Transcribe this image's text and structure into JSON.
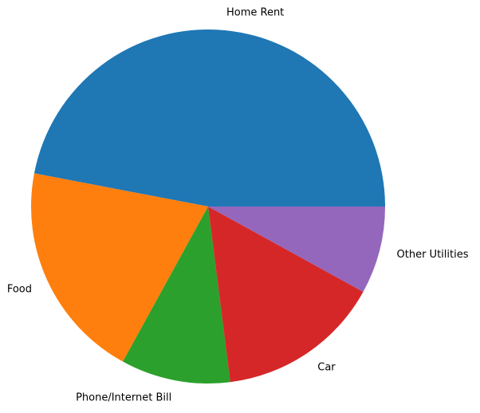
{
  "chart_data": {
    "type": "pie",
    "title": "",
    "start_angle_deg": 0,
    "direction": "counterclockwise",
    "slices": [
      {
        "label": "Home Rent",
        "value": 47,
        "color": "#1f77b4"
      },
      {
        "label": "Food",
        "value": 20,
        "color": "#ff7f0e"
      },
      {
        "label": "Phone/Internet Bill",
        "value": 10,
        "color": "#2ca02c"
      },
      {
        "label": "Car",
        "value": 15,
        "color": "#d62728"
      },
      {
        "label": "Other Utilities",
        "value": 8,
        "color": "#9467bd"
      }
    ]
  }
}
